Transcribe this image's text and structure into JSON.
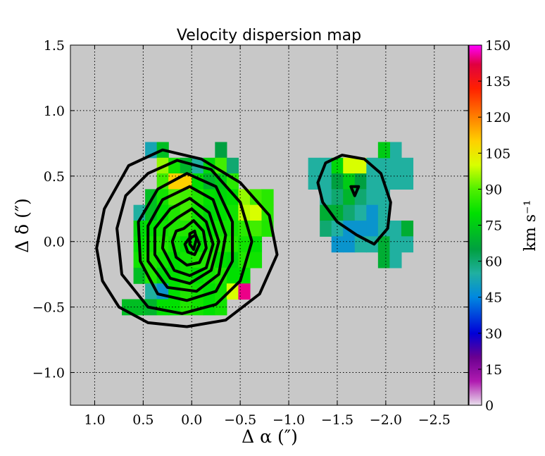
{
  "chart_data": {
    "type": "heatmap",
    "title": "Velocity dispersion map",
    "xlabel": "Δ α  (″)",
    "ylabel": "Δ δ  (″)",
    "xlim": [
      1.25,
      -2.85
    ],
    "ylim": [
      -1.25,
      1.5
    ],
    "grid": true,
    "x_ticks": [
      1.0,
      0.5,
      0.0,
      -0.5,
      -1.0,
      -1.5,
      -2.0,
      -2.5
    ],
    "x_tick_labels": [
      "1.0",
      "0.5",
      "0.0",
      "−0.5",
      "−1.0",
      "−1.5",
      "−2.0",
      "−2.5"
    ],
    "y_ticks": [
      1.5,
      1.0,
      0.5,
      0.0,
      -0.5,
      -1.0
    ],
    "y_tick_labels": [
      "1.5",
      "1.0",
      "0.5",
      "0.0",
      "−0.5",
      "−1.0"
    ],
    "background_color": "#c8c8c8",
    "pixel_size": 0.12,
    "colorbar": {
      "label": "km s⁻¹",
      "min": 0,
      "max": 150,
      "ticks": [
        0,
        15,
        30,
        45,
        60,
        75,
        90,
        105,
        120,
        135,
        150
      ],
      "tick_labels": [
        "0",
        "15",
        "30",
        "45",
        "60",
        "75",
        "90",
        "105",
        "120",
        "135",
        "150"
      ],
      "stops": [
        [
          0,
          "#e8e0ec"
        ],
        [
          10,
          "#b01ab0"
        ],
        [
          20,
          "#6a0090"
        ],
        [
          30,
          "#0000d8"
        ],
        [
          45,
          "#0088e0"
        ],
        [
          55,
          "#20b0a0"
        ],
        [
          65,
          "#00a040"
        ],
        [
          80,
          "#00e000"
        ],
        [
          90,
          "#50f000"
        ],
        [
          100,
          "#d8ff00"
        ],
        [
          110,
          "#ffd000"
        ],
        [
          120,
          "#ff8000"
        ],
        [
          132,
          "#ff2000"
        ],
        [
          142,
          "#e00040"
        ],
        [
          150,
          "#ff00ff"
        ]
      ]
    },
    "cells": [
      {
        "x": 0.42,
        "y": 0.7,
        "v": 52
      },
      {
        "x": 0.3,
        "y": 0.7,
        "v": 72
      },
      {
        "x": -0.3,
        "y": 0.7,
        "v": 65
      },
      {
        "x": 0.3,
        "y": 0.58,
        "v": 95
      },
      {
        "x": 0.18,
        "y": 0.58,
        "v": 82
      },
      {
        "x": 0.06,
        "y": 0.58,
        "v": 70
      },
      {
        "x": -0.06,
        "y": 0.58,
        "v": 55
      },
      {
        "x": -0.18,
        "y": 0.58,
        "v": 78
      },
      {
        "x": -0.3,
        "y": 0.58,
        "v": 88
      },
      {
        "x": -0.42,
        "y": 0.58,
        "v": 60
      },
      {
        "x": 0.3,
        "y": 0.46,
        "v": 88
      },
      {
        "x": 0.18,
        "y": 0.46,
        "v": 110
      },
      {
        "x": 0.06,
        "y": 0.46,
        "v": 110
      },
      {
        "x": -0.06,
        "y": 0.46,
        "v": 80
      },
      {
        "x": -0.18,
        "y": 0.46,
        "v": 70
      },
      {
        "x": -0.3,
        "y": 0.46,
        "v": 75
      },
      {
        "x": -0.42,
        "y": 0.46,
        "v": 85
      },
      {
        "x": 0.42,
        "y": 0.34,
        "v": 72
      },
      {
        "x": 0.3,
        "y": 0.34,
        "v": 82
      },
      {
        "x": 0.18,
        "y": 0.34,
        "v": 90
      },
      {
        "x": 0.06,
        "y": 0.34,
        "v": 88
      },
      {
        "x": -0.06,
        "y": 0.34,
        "v": 84
      },
      {
        "x": -0.18,
        "y": 0.34,
        "v": 80
      },
      {
        "x": -0.3,
        "y": 0.34,
        "v": 78
      },
      {
        "x": -0.42,
        "y": 0.34,
        "v": 80
      },
      {
        "x": -0.54,
        "y": 0.34,
        "v": 95
      },
      {
        "x": -0.66,
        "y": 0.34,
        "v": 88
      },
      {
        "x": -0.78,
        "y": 0.34,
        "v": 85
      },
      {
        "x": 0.54,
        "y": 0.22,
        "v": 55
      },
      {
        "x": 0.42,
        "y": 0.22,
        "v": 72
      },
      {
        "x": 0.3,
        "y": 0.22,
        "v": 80
      },
      {
        "x": 0.18,
        "y": 0.22,
        "v": 84
      },
      {
        "x": 0.06,
        "y": 0.22,
        "v": 88
      },
      {
        "x": -0.06,
        "y": 0.22,
        "v": 82
      },
      {
        "x": -0.18,
        "y": 0.22,
        "v": 78
      },
      {
        "x": -0.3,
        "y": 0.22,
        "v": 80
      },
      {
        "x": -0.42,
        "y": 0.22,
        "v": 82
      },
      {
        "x": -0.54,
        "y": 0.22,
        "v": 98
      },
      {
        "x": -0.66,
        "y": 0.22,
        "v": 100
      },
      {
        "x": -0.78,
        "y": 0.22,
        "v": 85
      },
      {
        "x": 0.54,
        "y": 0.1,
        "v": 78
      },
      {
        "x": 0.42,
        "y": 0.1,
        "v": 80
      },
      {
        "x": 0.3,
        "y": 0.1,
        "v": 82
      },
      {
        "x": 0.18,
        "y": 0.1,
        "v": 84
      },
      {
        "x": 0.06,
        "y": 0.1,
        "v": 84
      },
      {
        "x": -0.06,
        "y": 0.1,
        "v": 82
      },
      {
        "x": -0.18,
        "y": 0.1,
        "v": 80
      },
      {
        "x": -0.3,
        "y": 0.1,
        "v": 82
      },
      {
        "x": -0.42,
        "y": 0.1,
        "v": 82
      },
      {
        "x": -0.54,
        "y": 0.1,
        "v": 85
      },
      {
        "x": -0.66,
        "y": 0.1,
        "v": 88
      },
      {
        "x": -0.78,
        "y": 0.1,
        "v": 84
      },
      {
        "x": 0.54,
        "y": -0.02,
        "v": 80
      },
      {
        "x": 0.42,
        "y": -0.02,
        "v": 82
      },
      {
        "x": 0.3,
        "y": -0.02,
        "v": 84
      },
      {
        "x": 0.18,
        "y": -0.02,
        "v": 82
      },
      {
        "x": 0.06,
        "y": -0.02,
        "v": 80
      },
      {
        "x": -0.06,
        "y": -0.02,
        "v": 80
      },
      {
        "x": -0.18,
        "y": -0.02,
        "v": 82
      },
      {
        "x": -0.3,
        "y": -0.02,
        "v": 84
      },
      {
        "x": -0.42,
        "y": -0.02,
        "v": 84
      },
      {
        "x": -0.54,
        "y": -0.02,
        "v": 82
      },
      {
        "x": -0.66,
        "y": -0.02,
        "v": 80
      },
      {
        "x": 0.54,
        "y": -0.14,
        "v": 82
      },
      {
        "x": 0.42,
        "y": -0.14,
        "v": 84
      },
      {
        "x": 0.3,
        "y": -0.14,
        "v": 82
      },
      {
        "x": 0.18,
        "y": -0.14,
        "v": 80
      },
      {
        "x": 0.06,
        "y": -0.14,
        "v": 82
      },
      {
        "x": -0.06,
        "y": -0.14,
        "v": 84
      },
      {
        "x": -0.18,
        "y": -0.14,
        "v": 84
      },
      {
        "x": -0.3,
        "y": -0.14,
        "v": 80
      },
      {
        "x": -0.42,
        "y": -0.14,
        "v": 78
      },
      {
        "x": -0.54,
        "y": -0.14,
        "v": 84
      },
      {
        "x": -0.66,
        "y": -0.14,
        "v": 82
      },
      {
        "x": 0.54,
        "y": -0.26,
        "v": 72
      },
      {
        "x": 0.42,
        "y": -0.26,
        "v": 84
      },
      {
        "x": 0.3,
        "y": -0.26,
        "v": 78
      },
      {
        "x": 0.18,
        "y": -0.26,
        "v": 80
      },
      {
        "x": 0.06,
        "y": -0.26,
        "v": 82
      },
      {
        "x": -0.06,
        "y": -0.26,
        "v": 80
      },
      {
        "x": -0.18,
        "y": -0.26,
        "v": 82
      },
      {
        "x": -0.3,
        "y": -0.26,
        "v": 84
      },
      {
        "x": -0.42,
        "y": -0.26,
        "v": 80
      },
      {
        "x": -0.54,
        "y": -0.26,
        "v": 80
      },
      {
        "x": 0.42,
        "y": -0.38,
        "v": 55
      },
      {
        "x": 0.3,
        "y": -0.38,
        "v": 48
      },
      {
        "x": 0.18,
        "y": -0.38,
        "v": 80
      },
      {
        "x": 0.06,
        "y": -0.38,
        "v": 84
      },
      {
        "x": -0.06,
        "y": -0.38,
        "v": 82
      },
      {
        "x": -0.18,
        "y": -0.38,
        "v": 80
      },
      {
        "x": -0.3,
        "y": -0.38,
        "v": 82
      },
      {
        "x": -0.42,
        "y": -0.38,
        "v": 100
      },
      {
        "x": -0.54,
        "y": -0.38,
        "v": 145
      },
      {
        "x": 0.66,
        "y": -0.5,
        "v": 72
      },
      {
        "x": 0.54,
        "y": -0.5,
        "v": 72
      },
      {
        "x": 0.42,
        "y": -0.5,
        "v": 70
      },
      {
        "x": 0.3,
        "y": -0.5,
        "v": 80
      },
      {
        "x": 0.18,
        "y": -0.5,
        "v": 80
      },
      {
        "x": 0.06,
        "y": -0.5,
        "v": 84
      },
      {
        "x": -0.06,
        "y": -0.5,
        "v": 82
      },
      {
        "x": -0.18,
        "y": -0.5,
        "v": 80
      },
      {
        "x": -0.3,
        "y": -0.5,
        "v": 82
      },
      {
        "x": -1.26,
        "y": 0.58,
        "v": 55
      },
      {
        "x": -1.38,
        "y": 0.58,
        "v": 55
      },
      {
        "x": -1.5,
        "y": 0.58,
        "v": 78
      },
      {
        "x": -1.62,
        "y": 0.58,
        "v": 100
      },
      {
        "x": -1.74,
        "y": 0.58,
        "v": 100
      },
      {
        "x": -1.86,
        "y": 0.58,
        "v": 55
      },
      {
        "x": -1.98,
        "y": 0.58,
        "v": 55
      },
      {
        "x": -2.1,
        "y": 0.58,
        "v": 55
      },
      {
        "x": -2.22,
        "y": 0.58,
        "v": 55
      },
      {
        "x": -2.1,
        "y": 0.7,
        "v": 55
      },
      {
        "x": -1.98,
        "y": 0.7,
        "v": 75
      },
      {
        "x": -1.26,
        "y": 0.46,
        "v": 55
      },
      {
        "x": -1.38,
        "y": 0.46,
        "v": 55
      },
      {
        "x": -1.5,
        "y": 0.46,
        "v": 65
      },
      {
        "x": -1.62,
        "y": 0.46,
        "v": 75
      },
      {
        "x": -1.74,
        "y": 0.46,
        "v": 65
      },
      {
        "x": -1.86,
        "y": 0.46,
        "v": 55
      },
      {
        "x": -1.98,
        "y": 0.46,
        "v": 55
      },
      {
        "x": -2.1,
        "y": 0.46,
        "v": 55
      },
      {
        "x": -2.22,
        "y": 0.46,
        "v": 55
      },
      {
        "x": -1.38,
        "y": 0.34,
        "v": 55
      },
      {
        "x": -1.5,
        "y": 0.34,
        "v": 60
      },
      {
        "x": -1.62,
        "y": 0.34,
        "v": 70
      },
      {
        "x": -1.74,
        "y": 0.34,
        "v": 60
      },
      {
        "x": -1.86,
        "y": 0.34,
        "v": 55
      },
      {
        "x": -1.98,
        "y": 0.34,
        "v": 55
      },
      {
        "x": -1.38,
        "y": 0.22,
        "v": 68
      },
      {
        "x": -1.5,
        "y": 0.22,
        "v": 68
      },
      {
        "x": -1.62,
        "y": 0.22,
        "v": 60
      },
      {
        "x": -1.74,
        "y": 0.22,
        "v": 55
      },
      {
        "x": -1.86,
        "y": 0.22,
        "v": 48
      },
      {
        "x": -1.98,
        "y": 0.22,
        "v": 55
      },
      {
        "x": -1.38,
        "y": 0.1,
        "v": 60
      },
      {
        "x": -1.5,
        "y": 0.1,
        "v": 55
      },
      {
        "x": -1.62,
        "y": 0.1,
        "v": 48
      },
      {
        "x": -1.74,
        "y": 0.1,
        "v": 48
      },
      {
        "x": -1.86,
        "y": 0.1,
        "v": 48
      },
      {
        "x": -1.98,
        "y": 0.1,
        "v": 55
      },
      {
        "x": -2.1,
        "y": 0.1,
        "v": 55
      },
      {
        "x": -2.22,
        "y": 0.1,
        "v": 68
      },
      {
        "x": -1.5,
        "y": -0.02,
        "v": 48
      },
      {
        "x": -1.62,
        "y": -0.02,
        "v": 48
      },
      {
        "x": -1.74,
        "y": -0.02,
        "v": 55
      },
      {
        "x": -1.86,
        "y": -0.02,
        "v": 55
      },
      {
        "x": -1.98,
        "y": -0.02,
        "v": 68
      },
      {
        "x": -2.1,
        "y": -0.02,
        "v": 55
      },
      {
        "x": -2.22,
        "y": -0.02,
        "v": 55
      },
      {
        "x": -1.98,
        "y": -0.14,
        "v": 68
      },
      {
        "x": -2.1,
        "y": -0.14,
        "v": 55
      }
    ],
    "contours": [
      [
        [
          0.65,
          0.58
        ],
        [
          0.3,
          0.7
        ],
        [
          -0.1,
          0.63
        ],
        [
          -0.5,
          0.45
        ],
        [
          -0.8,
          0.2
        ],
        [
          -0.88,
          -0.1
        ],
        [
          -0.7,
          -0.4
        ],
        [
          -0.35,
          -0.6
        ],
        [
          0.05,
          -0.65
        ],
        [
          0.45,
          -0.62
        ],
        [
          0.75,
          -0.5
        ],
        [
          0.92,
          -0.3
        ],
        [
          0.98,
          -0.05
        ],
        [
          0.9,
          0.25
        ]
      ],
      [
        [
          0.45,
          0.52
        ],
        [
          0.15,
          0.62
        ],
        [
          -0.2,
          0.55
        ],
        [
          -0.5,
          0.3
        ],
        [
          -0.62,
          0.0
        ],
        [
          -0.5,
          -0.3
        ],
        [
          -0.25,
          -0.48
        ],
        [
          0.1,
          -0.55
        ],
        [
          0.45,
          -0.5
        ],
        [
          0.72,
          -0.25
        ],
        [
          0.77,
          0.1
        ],
        [
          0.68,
          0.35
        ]
      ],
      [
        [
          0.35,
          0.4
        ],
        [
          0.05,
          0.52
        ],
        [
          -0.25,
          0.42
        ],
        [
          -0.42,
          0.15
        ],
        [
          -0.42,
          -0.15
        ],
        [
          -0.25,
          -0.38
        ],
        [
          0.05,
          -0.45
        ],
        [
          0.35,
          -0.4
        ],
        [
          0.53,
          -0.15
        ],
        [
          0.55,
          0.15
        ]
      ],
      [
        [
          0.3,
          0.32
        ],
        [
          0.02,
          0.42
        ],
        [
          -0.22,
          0.32
        ],
        [
          -0.35,
          0.05
        ],
        [
          -0.28,
          -0.25
        ],
        [
          -0.05,
          -0.38
        ],
        [
          0.25,
          -0.35
        ],
        [
          0.45,
          -0.15
        ],
        [
          0.45,
          0.12
        ]
      ],
      [
        [
          0.22,
          0.25
        ],
        [
          0.02,
          0.33
        ],
        [
          -0.18,
          0.22
        ],
        [
          -0.28,
          0.0
        ],
        [
          -0.2,
          -0.22
        ],
        [
          0.02,
          -0.32
        ],
        [
          0.22,
          -0.28
        ],
        [
          0.38,
          -0.1
        ],
        [
          0.38,
          0.1
        ]
      ],
      [
        [
          0.15,
          0.18
        ],
        [
          0.0,
          0.25
        ],
        [
          -0.15,
          0.15
        ],
        [
          -0.22,
          -0.02
        ],
        [
          -0.15,
          -0.2
        ],
        [
          0.02,
          -0.26
        ],
        [
          0.18,
          -0.22
        ],
        [
          0.3,
          -0.05
        ],
        [
          0.28,
          0.1
        ]
      ],
      [
        [
          0.08,
          0.1
        ],
        [
          -0.02,
          0.16
        ],
        [
          -0.12,
          0.08
        ],
        [
          -0.15,
          -0.05
        ],
        [
          -0.08,
          -0.16
        ],
        [
          0.05,
          -0.18
        ],
        [
          0.16,
          -0.12
        ],
        [
          0.2,
          0.0
        ],
        [
          0.16,
          0.08
        ]
      ],
      [
        [
          0.03,
          0.02
        ],
        [
          -0.04,
          0.05
        ],
        [
          -0.08,
          -0.02
        ],
        [
          -0.03,
          -0.1
        ],
        [
          0.04,
          -0.08
        ],
        [
          0.07,
          -0.02
        ]
      ],
      [
        [
          0.02,
          0.06
        ],
        [
          -0.03,
          0.08
        ],
        [
          -0.05,
          0.02
        ],
        [
          -0.02,
          -0.06
        ],
        [
          0.02,
          -0.02
        ]
      ],
      [
        [
          -1.38,
          0.6
        ],
        [
          -1.55,
          0.66
        ],
        [
          -1.78,
          0.63
        ],
        [
          -1.95,
          0.52
        ],
        [
          -2.05,
          0.3
        ],
        [
          -2.02,
          0.1
        ],
        [
          -1.88,
          -0.02
        ],
        [
          -1.7,
          0.05
        ],
        [
          -1.5,
          0.15
        ],
        [
          -1.35,
          0.3
        ],
        [
          -1.3,
          0.45
        ]
      ],
      [
        [
          -1.64,
          0.42
        ],
        [
          -1.72,
          0.42
        ],
        [
          -1.68,
          0.35
        ]
      ]
    ]
  }
}
